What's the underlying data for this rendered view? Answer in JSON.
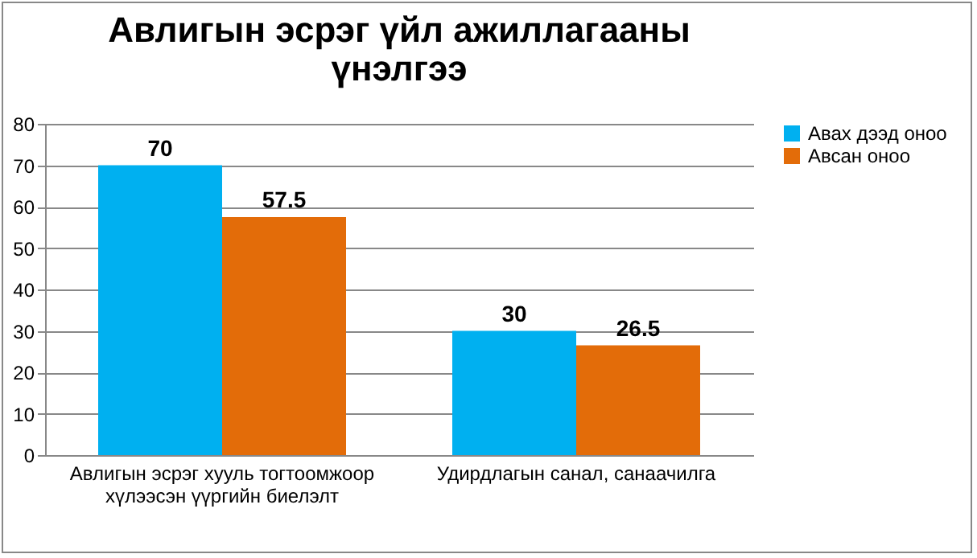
{
  "chart_data": {
    "type": "bar",
    "title": "Авлигын эсрэг үйл ажиллагааны үнэлгээ",
    "categories": [
      "Авлигын эсрэг хууль тогтоомжоор хүлээсэн үүргийн биелэлт",
      "Удирдлагын санал, санаачилга"
    ],
    "series": [
      {
        "name": "Авах дээд оноо",
        "color": "#00b0f0",
        "values": [
          70,
          30
        ]
      },
      {
        "name": "Авсан оноо",
        "color": "#e36c09",
        "values": [
          57.5,
          26.5
        ]
      }
    ],
    "ylim": [
      0,
      80
    ],
    "yticks": [
      0,
      10,
      20,
      30,
      40,
      50,
      60,
      70,
      80
    ],
    "grid": "y",
    "legend": "right",
    "data_labels": true
  }
}
